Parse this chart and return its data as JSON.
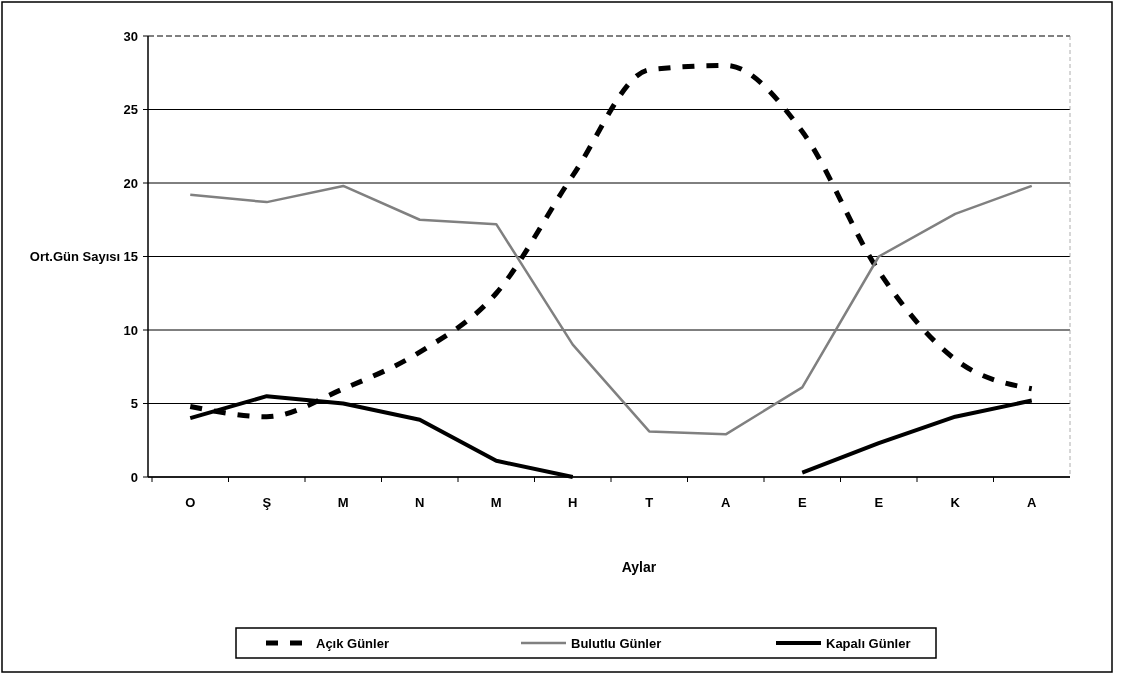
{
  "chart_data": {
    "type": "line",
    "xlabel": "Aylar",
    "ylabel": "Ort.Gün Sayısı",
    "categories": [
      "O",
      "Ş",
      "M",
      "N",
      "M",
      "H",
      "T",
      "A",
      "E",
      "E",
      "K",
      "A"
    ],
    "series": [
      {
        "name": "Açık Günler",
        "color": "#000000",
        "line_style": "dashed",
        "values": [
          4.8,
          4.1,
          6.0,
          8.5,
          12.5,
          20.5,
          27.7,
          28.0,
          23.5,
          14.0,
          8.0,
          6.0
        ]
      },
      {
        "name": "Bulutlu Günler",
        "color": "#808080",
        "line_style": "solid",
        "values": [
          19.2,
          18.7,
          19.8,
          17.5,
          17.2,
          9.0,
          3.1,
          2.9,
          6.1,
          15.0,
          17.9,
          19.8
        ]
      },
      {
        "name": "Kapalı Günler",
        "color": "#000000",
        "line_style": "solid",
        "values": [
          4.0,
          5.5,
          5.0,
          3.9,
          1.1,
          0.0,
          null,
          null,
          0.3,
          2.3,
          4.1,
          5.2
        ]
      }
    ],
    "ylim": [
      0,
      30
    ],
    "yticks": [
      0,
      5,
      10,
      15,
      20,
      25,
      30
    ],
    "grid": "y",
    "legend": "bottom",
    "marker": "none"
  }
}
